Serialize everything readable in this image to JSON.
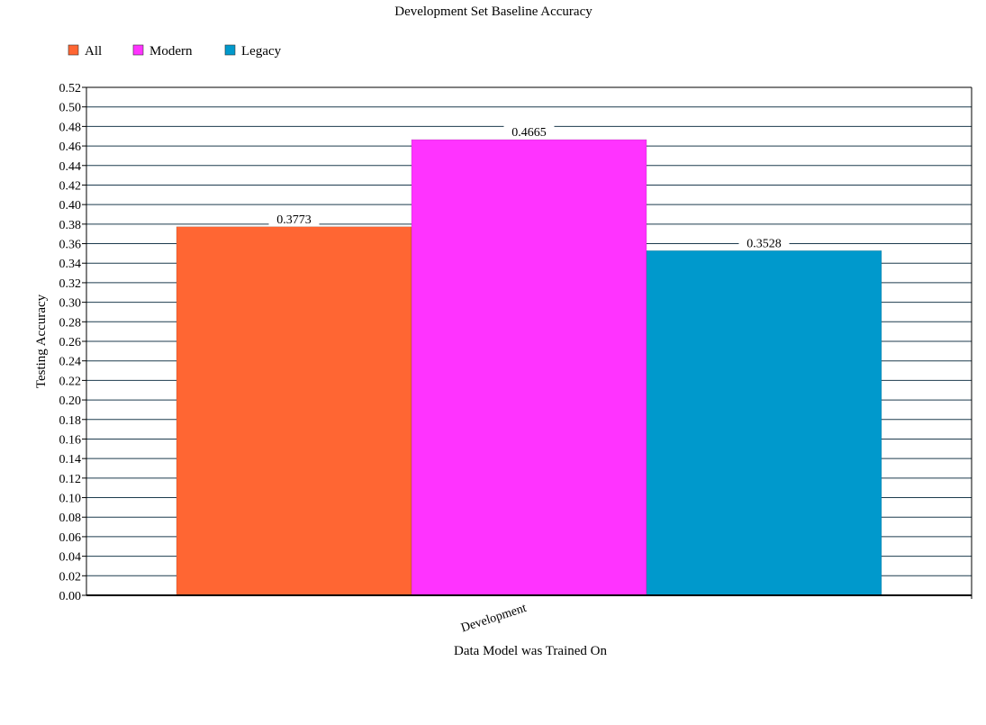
{
  "chart_data": {
    "type": "bar",
    "title": "Development Set Baseline Accuracy",
    "xlabel": "Data Model was Trained On",
    "ylabel": "Testing Accuracy",
    "categories": [
      "Development"
    ],
    "series": [
      {
        "name": "All",
        "values": [
          0.3773
        ],
        "color": "#ff6633",
        "label": "0.3773"
      },
      {
        "name": "Modern",
        "values": [
          0.4665
        ],
        "color": "#ff33ff",
        "label": "0.4665"
      },
      {
        "name": "Legacy",
        "values": [
          0.3528
        ],
        "color": "#0099cc",
        "label": "0.3528"
      }
    ],
    "ylim": [
      0,
      0.52
    ],
    "ytick_step": 0.02,
    "ytick_labels": [
      "0.00",
      "0.02",
      "0.04",
      "0.06",
      "0.08",
      "0.10",
      "0.12",
      "0.14",
      "0.16",
      "0.18",
      "0.20",
      "0.22",
      "0.24",
      "0.26",
      "0.28",
      "0.30",
      "0.32",
      "0.34",
      "0.36",
      "0.38",
      "0.40",
      "0.42",
      "0.44",
      "0.46",
      "0.48",
      "0.50",
      "0.52"
    ],
    "grid": true,
    "legend_position": "top-left"
  }
}
